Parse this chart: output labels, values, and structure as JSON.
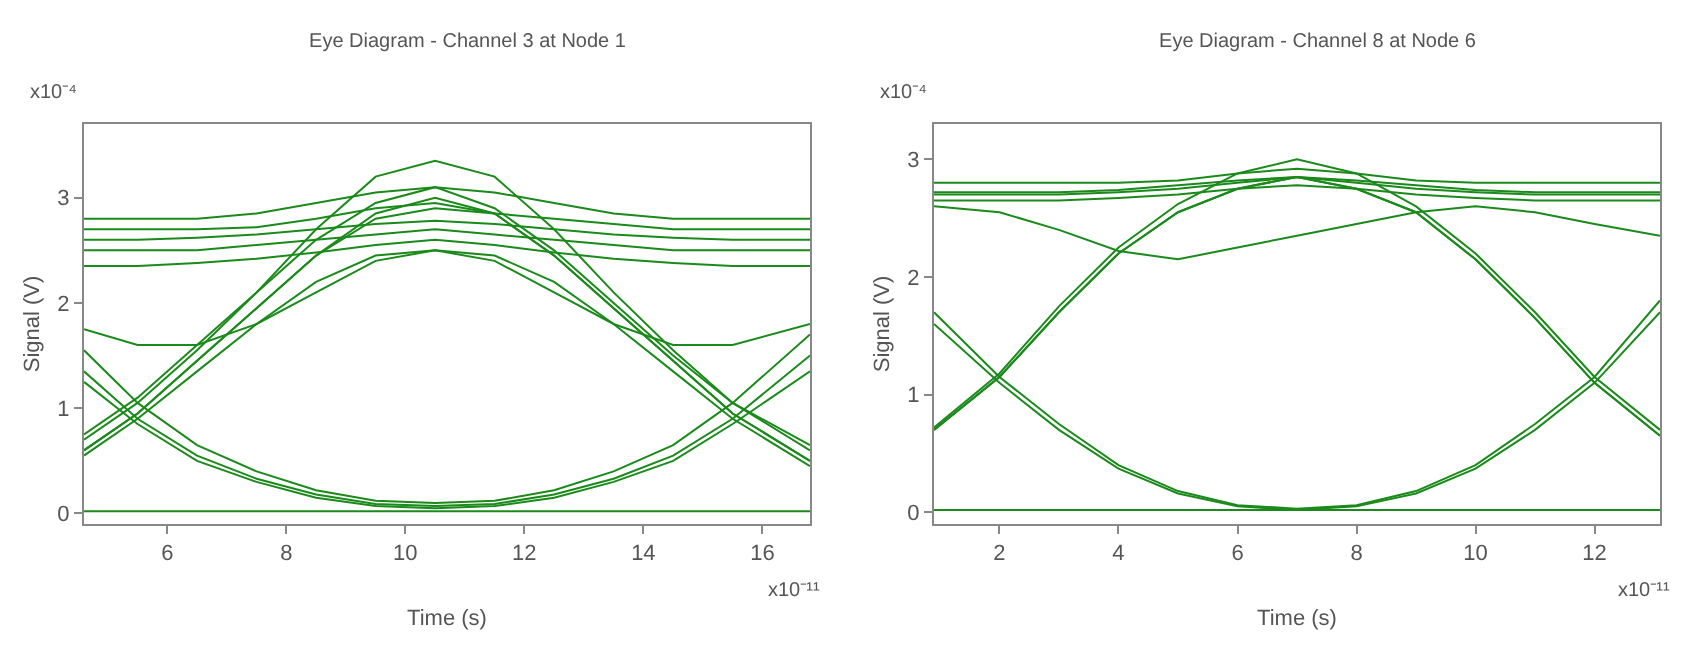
{
  "chart_data": [
    {
      "type": "line",
      "title": "Eye Diagram - Channel 3 at Node 1",
      "xlabel": "Time (s)",
      "ylabel": "Signal (V)",
      "annotations": [
        "x10⁻⁴",
        "x10⁻¹¹"
      ],
      "xlim": [
        4.6,
        16.8
      ],
      "ylim": [
        -0.1,
        3.7
      ],
      "xticks": [
        6,
        8,
        10,
        12,
        14,
        16
      ],
      "yticks": [
        0,
        1,
        2,
        3
      ],
      "grid": false,
      "x": [
        4.6,
        5.5,
        6.5,
        7.5,
        8.5,
        9.5,
        10.5,
        11.5,
        12.5,
        13.5,
        14.5,
        15.5,
        16.8
      ],
      "series": [
        {
          "color": "#1a8a1a",
          "values": [
            0.6,
            0.95,
            1.45,
            1.95,
            2.45,
            2.85,
            3.0,
            2.85,
            2.45,
            1.95,
            1.45,
            0.95,
            0.5
          ]
        },
        {
          "color": "#1a8a1a",
          "values": [
            0.75,
            1.1,
            1.6,
            2.1,
            2.6,
            2.95,
            3.1,
            2.9,
            2.5,
            2.0,
            1.5,
            1.05,
            0.65
          ]
        },
        {
          "color": "#1a8a1a",
          "values": [
            0.7,
            1.05,
            1.55,
            2.1,
            2.7,
            3.2,
            3.35,
            3.2,
            2.7,
            2.1,
            1.55,
            1.05,
            0.6
          ]
        },
        {
          "color": "#1a8a1a",
          "values": [
            0.55,
            0.9,
            1.35,
            1.8,
            2.2,
            2.45,
            2.5,
            2.45,
            2.2,
            1.8,
            1.35,
            0.9,
            0.45
          ]
        },
        {
          "color": "#1a8a1a",
          "values": [
            1.55,
            1.05,
            0.65,
            0.4,
            0.22,
            0.12,
            0.1,
            0.12,
            0.22,
            0.4,
            0.65,
            1.05,
            1.7
          ]
        },
        {
          "color": "#1a8a1a",
          "values": [
            1.35,
            0.9,
            0.55,
            0.33,
            0.18,
            0.09,
            0.07,
            0.09,
            0.18,
            0.33,
            0.55,
            0.9,
            1.5
          ]
        },
        {
          "color": "#1a8a1a",
          "values": [
            1.25,
            0.85,
            0.5,
            0.3,
            0.15,
            0.07,
            0.05,
            0.07,
            0.15,
            0.3,
            0.5,
            0.85,
            1.35
          ]
        },
        {
          "color": "#1a8a1a",
          "values": [
            2.7,
            2.7,
            2.7,
            2.72,
            2.8,
            2.9,
            2.95,
            2.85,
            2.45,
            1.95,
            1.45,
            0.95,
            0.5
          ]
        },
        {
          "color": "#1a8a1a",
          "values": [
            0.6,
            0.95,
            1.45,
            1.95,
            2.45,
            2.8,
            2.9,
            2.85,
            2.8,
            2.75,
            2.7,
            2.7,
            2.7
          ]
        },
        {
          "color": "#1a8a1a",
          "values": [
            2.8,
            2.8,
            2.8,
            2.85,
            2.95,
            3.05,
            3.1,
            3.05,
            2.95,
            2.85,
            2.8,
            2.8,
            2.8
          ]
        },
        {
          "color": "#1a8a1a",
          "values": [
            2.6,
            2.6,
            2.62,
            2.65,
            2.7,
            2.75,
            2.78,
            2.75,
            2.7,
            2.65,
            2.62,
            2.6,
            2.6
          ]
        },
        {
          "color": "#1a8a1a",
          "values": [
            2.5,
            2.5,
            2.5,
            2.55,
            2.6,
            2.65,
            2.7,
            2.65,
            2.6,
            2.55,
            2.5,
            2.5,
            2.5
          ]
        },
        {
          "color": "#1a8a1a",
          "values": [
            2.35,
            2.35,
            2.38,
            2.42,
            2.48,
            2.55,
            2.6,
            2.55,
            2.48,
            2.42,
            2.38,
            2.35,
            2.35
          ]
        },
        {
          "color": "#1a8a1a",
          "values": [
            1.75,
            1.6,
            1.6,
            1.8,
            2.1,
            2.4,
            2.5,
            2.4,
            2.1,
            1.8,
            1.6,
            1.6,
            1.8
          ]
        },
        {
          "color": "#1a8a1a",
          "values": [
            0.02,
            0.02,
            0.02,
            0.02,
            0.02,
            0.02,
            0.02,
            0.02,
            0.02,
            0.02,
            0.02,
            0.02,
            0.02
          ]
        }
      ]
    },
    {
      "type": "line",
      "title": "Eye Diagram - Channel 8 at Node 6",
      "xlabel": "Time (s)",
      "ylabel": "Signal (V)",
      "annotations": [
        "x10⁻⁴",
        "x10⁻¹¹"
      ],
      "xlim": [
        0.9,
        13.1
      ],
      "ylim": [
        -0.1,
        3.3
      ],
      "xticks": [
        2,
        4,
        6,
        8,
        10,
        12
      ],
      "yticks": [
        0,
        1,
        2,
        3
      ],
      "grid": false,
      "x": [
        0.9,
        2,
        3,
        4,
        5,
        6,
        7,
        8,
        9,
        10,
        11,
        12,
        13.1
      ],
      "series": [
        {
          "color": "#1a8a1a",
          "values": [
            0.7,
            1.15,
            1.7,
            2.2,
            2.55,
            2.75,
            2.85,
            2.75,
            2.55,
            2.15,
            1.65,
            1.1,
            0.65
          ]
        },
        {
          "color": "#1a8a1a",
          "values": [
            0.72,
            1.18,
            1.75,
            2.25,
            2.62,
            2.88,
            3.0,
            2.88,
            2.6,
            2.2,
            1.7,
            1.15,
            0.7
          ]
        },
        {
          "color": "#1a8a1a",
          "values": [
            1.7,
            1.15,
            0.75,
            0.4,
            0.18,
            0.06,
            0.03,
            0.06,
            0.18,
            0.4,
            0.75,
            1.15,
            1.8
          ]
        },
        {
          "color": "#1a8a1a",
          "values": [
            1.6,
            1.1,
            0.7,
            0.37,
            0.16,
            0.05,
            0.02,
            0.05,
            0.16,
            0.37,
            0.7,
            1.1,
            1.7
          ]
        },
        {
          "color": "#1a8a1a",
          "values": [
            2.7,
            2.7,
            2.7,
            2.72,
            2.75,
            2.8,
            2.85,
            2.75,
            2.55,
            2.15,
            1.65,
            1.1,
            0.65
          ]
        },
        {
          "color": "#1a8a1a",
          "values": [
            0.7,
            1.15,
            1.7,
            2.2,
            2.55,
            2.75,
            2.85,
            2.8,
            2.75,
            2.72,
            2.7,
            2.7,
            2.7
          ]
        },
        {
          "color": "#1a8a1a",
          "values": [
            2.8,
            2.8,
            2.8,
            2.8,
            2.82,
            2.88,
            2.92,
            2.88,
            2.82,
            2.8,
            2.8,
            2.8,
            2.8
          ]
        },
        {
          "color": "#1a8a1a",
          "values": [
            2.72,
            2.72,
            2.72,
            2.74,
            2.78,
            2.82,
            2.85,
            2.82,
            2.78,
            2.74,
            2.72,
            2.72,
            2.72
          ]
        },
        {
          "color": "#1a8a1a",
          "values": [
            2.65,
            2.65,
            2.65,
            2.67,
            2.7,
            2.75,
            2.78,
            2.75,
            2.7,
            2.67,
            2.65,
            2.65,
            2.65
          ]
        },
        {
          "color": "#1a8a1a",
          "values": [
            2.6,
            2.55,
            2.4,
            2.22,
            2.15,
            2.25,
            2.35,
            2.45,
            2.55,
            2.6,
            2.55,
            2.45,
            2.35
          ]
        },
        {
          "color": "#1a8a1a",
          "values": [
            0.02,
            0.02,
            0.02,
            0.02,
            0.02,
            0.02,
            0.02,
            0.02,
            0.02,
            0.02,
            0.02,
            0.02,
            0.02
          ]
        }
      ]
    }
  ]
}
